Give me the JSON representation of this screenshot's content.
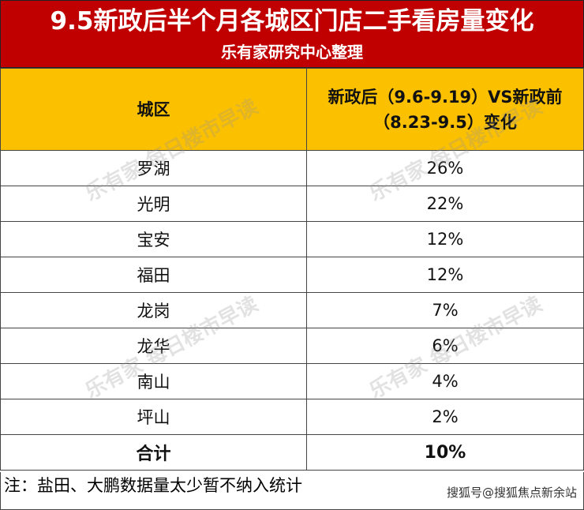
{
  "title": "9.5新政后半个月各城区门店二手看房量变化",
  "subtitle": "乐有家研究中心整理",
  "table": {
    "headers": [
      "城区",
      "新政后（9.6-9.19）VS新政前（8.23-9.5）变化"
    ],
    "header_line1": "新政后（9.6-9.19）VS新政前",
    "header_line2": "（8.23-9.5）变化",
    "rows": [
      {
        "district": "罗湖",
        "change": "26%"
      },
      {
        "district": "光明",
        "change": "22%"
      },
      {
        "district": "宝安",
        "change": "12%"
      },
      {
        "district": "福田",
        "change": "12%"
      },
      {
        "district": "龙岗",
        "change": "7%"
      },
      {
        "district": "龙华",
        "change": "6%"
      },
      {
        "district": "南山",
        "change": "4%"
      },
      {
        "district": "坪山",
        "change": "2%"
      }
    ],
    "total": {
      "label": "合计",
      "change": "10%"
    }
  },
  "note": "注：盐田、大鹏数据量太少暂不纳入统计",
  "credit": "搜狐号@搜狐焦点新余站",
  "watermark": "乐有家 每日楼市早读",
  "colors": {
    "title_bg": "#c00000",
    "header_bg": "#fbc000"
  }
}
